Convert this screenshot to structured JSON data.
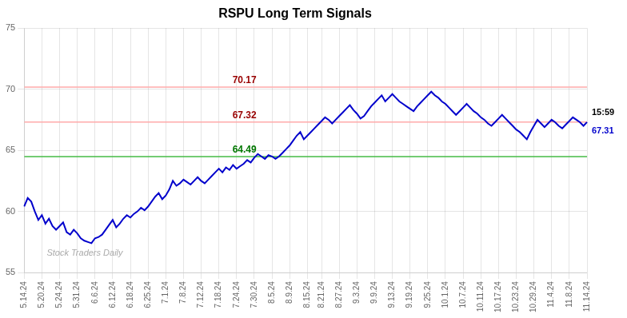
{
  "chart_data": {
    "type": "line",
    "title": "RSPU Long Term Signals",
    "categories": [
      "5.14.24",
      null,
      null,
      null,
      null,
      "5.20.24",
      null,
      null,
      null,
      null,
      "5.24.24",
      null,
      null,
      null,
      null,
      "5.31.24",
      null,
      null,
      null,
      null,
      "6.6.24",
      null,
      null,
      null,
      null,
      "6.12.24",
      null,
      null,
      null,
      null,
      "6.18.24",
      null,
      null,
      null,
      null,
      "6.25.24",
      null,
      null,
      null,
      null,
      "7.1.24",
      null,
      null,
      null,
      null,
      "7.8.24",
      null,
      null,
      null,
      null,
      "7.12.24",
      null,
      null,
      null,
      null,
      "7.18.24",
      null,
      null,
      null,
      null,
      "7.24.24",
      null,
      null,
      null,
      null,
      "7.30.24",
      null,
      null,
      null,
      null,
      "8.5.24",
      null,
      null,
      null,
      null,
      "8.9.24",
      null,
      null,
      null,
      null,
      "8.15.24",
      null,
      null,
      null,
      "8.21.24",
      null,
      null,
      null,
      null,
      "8.27.24",
      null,
      null,
      null,
      null,
      "9.3.24",
      null,
      null,
      null,
      null,
      "9.9.24",
      null,
      null,
      null,
      null,
      "9.13.24",
      null,
      null,
      null,
      null,
      "9.19.24",
      null,
      null,
      null,
      null,
      "9.25.24",
      null,
      null,
      null,
      null,
      "10.1.24",
      null,
      null,
      null,
      null,
      "10.7.24",
      null,
      null,
      null,
      null,
      "10.11.24",
      null,
      null,
      null,
      null,
      "10.17.24",
      null,
      null,
      null,
      null,
      "10.23.24",
      null,
      null,
      null,
      null,
      "10.29.24",
      null,
      null,
      null,
      null,
      "11.4.24",
      null,
      null,
      null,
      null,
      "11.8.24",
      null,
      null,
      null,
      null,
      "11.14.24"
    ],
    "values": [
      60.4,
      61.1,
      60.8,
      60.0,
      59.3,
      59.7,
      59.0,
      59.4,
      58.8,
      58.5,
      58.8,
      59.1,
      58.3,
      58.1,
      58.5,
      58.2,
      57.8,
      57.6,
      57.5,
      57.4,
      57.8,
      57.9,
      58.1,
      58.5,
      58.9,
      59.3,
      58.7,
      59.0,
      59.4,
      59.7,
      59.5,
      59.8,
      60.0,
      60.3,
      60.1,
      60.4,
      60.8,
      61.2,
      61.5,
      61.0,
      61.3,
      61.8,
      62.5,
      62.1,
      62.3,
      62.6,
      62.4,
      62.2,
      62.5,
      62.8,
      62.5,
      62.3,
      62.6,
      62.9,
      63.2,
      63.5,
      63.2,
      63.6,
      63.4,
      63.8,
      63.5,
      63.7,
      63.9,
      64.2,
      64.0,
      64.4,
      64.7,
      64.5,
      64.3,
      64.6,
      64.5,
      64.3,
      64.5,
      64.8,
      65.1,
      65.4,
      65.8,
      66.2,
      66.5,
      65.9,
      66.2,
      66.5,
      66.8,
      67.1,
      67.4,
      67.7,
      67.5,
      67.2,
      67.5,
      67.8,
      68.1,
      68.4,
      68.7,
      68.3,
      68.0,
      67.6,
      67.8,
      68.2,
      68.6,
      68.9,
      69.2,
      69.5,
      69.0,
      69.3,
      69.6,
      69.3,
      69.0,
      68.8,
      68.6,
      68.4,
      68.2,
      68.6,
      68.9,
      69.2,
      69.5,
      69.8,
      69.5,
      69.3,
      69.0,
      68.8,
      68.5,
      68.2,
      67.9,
      68.2,
      68.5,
      68.8,
      68.5,
      68.2,
      68.0,
      67.7,
      67.5,
      67.2,
      67.0,
      67.3,
      67.6,
      67.9,
      67.6,
      67.3,
      67.0,
      66.7,
      66.5,
      66.2,
      65.9,
      66.5,
      67.0,
      67.5,
      67.2,
      66.9,
      67.2,
      67.5,
      67.3,
      67.0,
      66.8,
      67.1,
      67.4,
      67.7,
      67.5,
      67.3,
      67.0,
      67.31
    ],
    "color": "#0000cc",
    "ylim": [
      55,
      75
    ],
    "yticks": [
      55,
      60,
      65,
      70,
      75
    ],
    "grid": true,
    "reference_lines": [
      {
        "value": 70.17,
        "label": "70.17",
        "color": "#ffaaaa",
        "label_color": "#990000"
      },
      {
        "value": 67.32,
        "label": "67.32",
        "color": "#ffaaaa",
        "label_color": "#990000"
      },
      {
        "value": 64.49,
        "label": "64.49",
        "color": "#44bb44",
        "label_color": "#007700"
      }
    ],
    "annotations": [
      {
        "text": "15:59",
        "color": "#000000"
      },
      {
        "text": "67.31",
        "color": "#0000cc"
      },
      {
        "text": "Stock Traders Daily",
        "color": "#aaaaaa"
      }
    ]
  }
}
